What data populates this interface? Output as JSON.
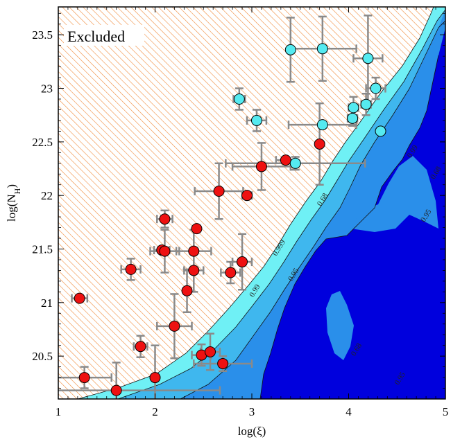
{
  "chart_data": {
    "type": "scatter",
    "xlabel": "log(ξ)",
    "ylabel_main": "log(N",
    "ylabel_sub": "H",
    "ylabel_close": ")",
    "xlim": [
      1,
      5
    ],
    "ylim": [
      20.1,
      23.76
    ],
    "xticks": [
      1,
      2,
      3,
      4,
      5
    ],
    "xtick_labels": [
      "1",
      "2",
      "3",
      "4",
      "5"
    ],
    "yticks": [
      20.5,
      21,
      21.5,
      22,
      22.5,
      23,
      23.5
    ],
    "ytick_labels": [
      "20.5",
      "21",
      "21.5",
      "22",
      "22.5",
      "23",
      "23.5"
    ],
    "annotation": "Excluded",
    "grid": false,
    "colors": {
      "hatch": "#f08a3a",
      "cyan_band": "#6ff0f5",
      "light_band": "#3fb7ee",
      "mid_band": "#2a8fea",
      "dark_region": "#0000dd",
      "errorbar": "#8a8a8a",
      "red_marker": "#ee1111",
      "cyan_marker": "#55eaf0"
    },
    "contour_levels": [
      {
        "label": "0.999",
        "x": 3.3,
        "y": 21.5
      },
      {
        "label": "0.99",
        "x": 3.05,
        "y": 21.1
      },
      {
        "label": "0.95",
        "x": 3.45,
        "y": 21.25
      },
      {
        "label": "0.68",
        "x": 3.75,
        "y": 21.95
      },
      {
        "label": "0.68",
        "x": 4.1,
        "y": 20.55
      },
      {
        "label": "0.95",
        "x": 4.55,
        "y": 20.28
      },
      {
        "label": "0.99",
        "x": 4.68,
        "y": 22.4
      },
      {
        "label": "0.95",
        "x": 4.82,
        "y": 21.8
      },
      {
        "label": "0.68",
        "x": 4.92,
        "y": 22.2
      }
    ],
    "series": [
      {
        "marker_color": "red",
        "points": [
          {
            "x": 1.22,
            "y": 21.04,
            "xerr": 0.08,
            "yerr": 0.0
          },
          {
            "x": 1.27,
            "y": 20.3,
            "xerr": 0.28,
            "yerr": 0.1
          },
          {
            "x": 1.6,
            "y": 20.18,
            "xerr": 1.07,
            "yerr": 0.26
          },
          {
            "x": 1.75,
            "y": 21.31,
            "xerr": 0.1,
            "yerr": 0.1
          },
          {
            "x": 1.85,
            "y": 20.59,
            "xerr": 0.07,
            "yerr": 0.1
          },
          {
            "x": 2.0,
            "y": 20.3,
            "xerr": 0.0,
            "yerr": 0.3
          },
          {
            "x": 2.07,
            "y": 21.49,
            "xerr": 0.08,
            "yerr": 0.0
          },
          {
            "x": 2.1,
            "y": 21.78,
            "xerr": 0.08,
            "yerr": 0.08
          },
          {
            "x": 2.1,
            "y": 21.48,
            "xerr": 0.15,
            "yerr": 0.2
          },
          {
            "x": 2.2,
            "y": 20.78,
            "xerr": 0.18,
            "yerr": 0.3
          },
          {
            "x": 2.33,
            "y": 21.11,
            "xerr": 0.0,
            "yerr": 0.2
          },
          {
            "x": 2.4,
            "y": 21.48,
            "xerr": 0.18,
            "yerr": 0.2
          },
          {
            "x": 2.4,
            "y": 21.3,
            "xerr": 0.1,
            "yerr": 0.2
          },
          {
            "x": 2.43,
            "y": 21.69,
            "xerr": 0.0,
            "yerr": 0.0
          },
          {
            "x": 2.48,
            "y": 20.51,
            "xerr": 0.1,
            "yerr": 0.1
          },
          {
            "x": 2.57,
            "y": 20.54,
            "xerr": 0.1,
            "yerr": 0.17
          },
          {
            "x": 2.66,
            "y": 22.04,
            "xerr": 0.25,
            "yerr": 0.26
          },
          {
            "x": 2.7,
            "y": 20.43,
            "xerr": 0.3,
            "yerr": 0.07
          },
          {
            "x": 2.78,
            "y": 21.28,
            "xerr": 0.1,
            "yerr": 0.1
          },
          {
            "x": 2.9,
            "y": 21.38,
            "xerr": 0.1,
            "yerr": 0.26
          },
          {
            "x": 2.95,
            "y": 22.0,
            "xerr": 0.05,
            "yerr": 0.0
          },
          {
            "x": 3.1,
            "y": 22.27,
            "xerr": 0.3,
            "yerr": 0.22
          },
          {
            "x": 3.35,
            "y": 22.33,
            "xerr": 0.1,
            "yerr": 0.0
          },
          {
            "x": 3.7,
            "y": 22.48,
            "xerr": 0.0,
            "yerr": 0.38
          }
        ]
      },
      {
        "marker_color": "cyan",
        "points": [
          {
            "x": 2.87,
            "y": 22.9,
            "xerr": 0.06,
            "yerr": 0.1
          },
          {
            "x": 3.05,
            "y": 22.7,
            "xerr": 0.1,
            "yerr": 0.1
          },
          {
            "x": 3.4,
            "y": 23.36,
            "xerr": 0.0,
            "yerr": 0.3
          },
          {
            "x": 3.45,
            "y": 22.3,
            "xerr": 0.72,
            "yerr": 0.06
          },
          {
            "x": 3.73,
            "y": 23.37,
            "xerr": 0.35,
            "yerr": 0.3
          },
          {
            "x": 3.73,
            "y": 22.66,
            "xerr": 0.35,
            "yerr": 0.0
          },
          {
            "x": 4.04,
            "y": 22.72,
            "xerr": 0.05,
            "yerr": 0.07
          },
          {
            "x": 4.05,
            "y": 22.82,
            "xerr": 0.05,
            "yerr": 0.1
          },
          {
            "x": 4.18,
            "y": 22.85,
            "xerr": 0.05,
            "yerr": 0.1
          },
          {
            "x": 4.2,
            "y": 23.28,
            "xerr": 0.15,
            "yerr": 0.4
          },
          {
            "x": 4.28,
            "y": 23.0,
            "xerr": 0.1,
            "yerr": 0.1
          },
          {
            "x": 4.33,
            "y": 22.6,
            "xerr": 0.0,
            "yerr": 0.0
          }
        ]
      }
    ]
  }
}
